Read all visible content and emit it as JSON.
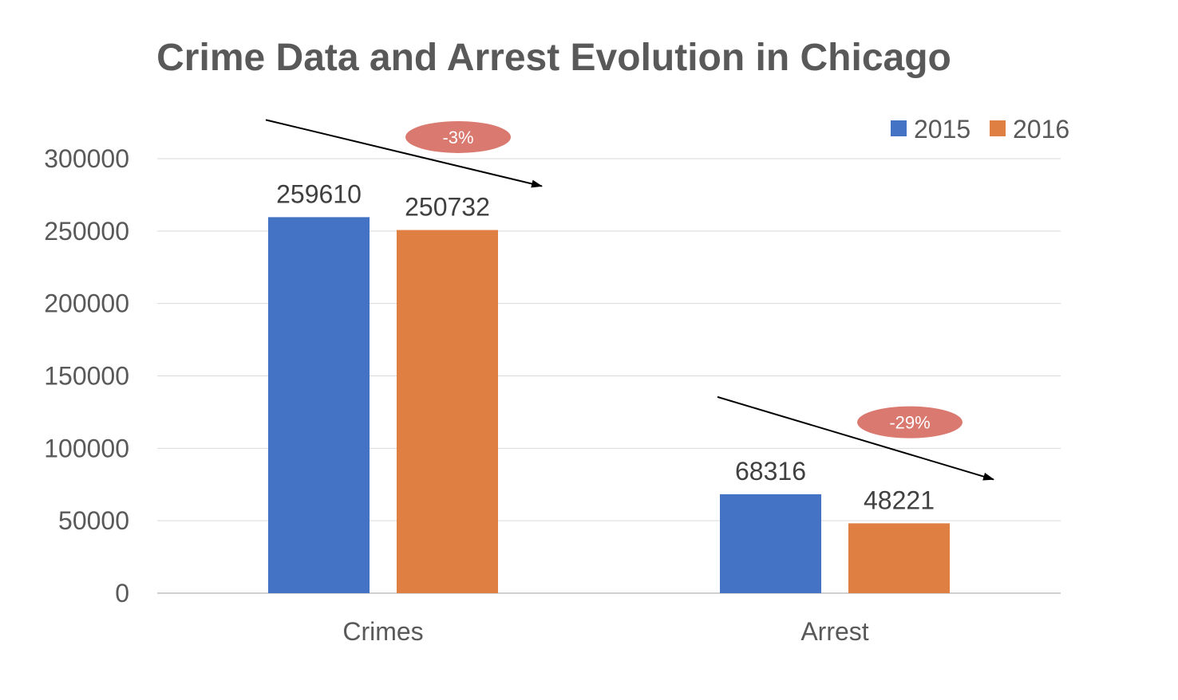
{
  "chart_data": {
    "type": "bar",
    "title": "Crime Data and Arrest Evolution in Chicago",
    "categories": [
      "Crimes",
      "Arrest"
    ],
    "series": [
      {
        "name": "2015",
        "color": "#4472C4",
        "values": [
          259610,
          68316
        ]
      },
      {
        "name": "2016",
        "color": "#E07F42",
        "values": [
          250732,
          48221
        ]
      }
    ],
    "ylim": [
      0,
      300000
    ],
    "yticks": [
      "0",
      "50000",
      "100000",
      "150000",
      "200000",
      "250000",
      "300000"
    ],
    "grid": true,
    "legend_position": "top-right",
    "annotations": [
      {
        "category": "Crimes",
        "text": "-3%",
        "color": "#D9796F"
      },
      {
        "category": "Arrest",
        "text": "-29%",
        "color": "#D9796F"
      }
    ]
  }
}
